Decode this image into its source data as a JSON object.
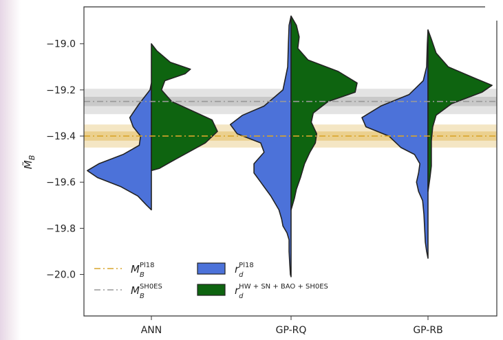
{
  "chart_data": {
    "type": "violin",
    "categories": [
      "ANN",
      "GP-RQ",
      "GP-RB"
    ],
    "ylabel": "M̃",
    "ylabel_sub": "B",
    "ylim": [
      -20.18,
      -18.84
    ],
    "yticks": [
      -19.0,
      -19.2,
      -19.4,
      -19.6,
      -19.8,
      -20.0
    ],
    "ytick_labels": [
      "−19.0",
      "−19.2",
      "−19.4",
      "−19.6",
      "−19.8",
      "−20.0"
    ],
    "grid": false,
    "legend_position": "bottom-left",
    "reference_lines": [
      {
        "key": "pl18",
        "label_main": "M",
        "label_sub": "B",
        "label_sup": "Pl18",
        "value": -19.4,
        "band1": 0.02,
        "band2": 0.05,
        "color": "#d9a52b"
      },
      {
        "key": "shoes",
        "label_main": "M",
        "label_sub": "B",
        "label_sup": "SH0ES",
        "value": -19.25,
        "band1": 0.02,
        "band2": 0.055,
        "color": "#999999"
      }
    ],
    "series": [
      {
        "key": "blue",
        "label_main": "r",
        "label_sub": "d",
        "label_sup": "Pl18",
        "color": "#4c72d9",
        "side": "left",
        "profiles": [
          [
            [
              -19.17,
              0
            ],
            [
              -19.2,
              0.02
            ],
            [
              -19.26,
              0.18
            ],
            [
              -19.32,
              0.32
            ],
            [
              -19.36,
              0.27
            ],
            [
              -19.4,
              0.16
            ],
            [
              -19.44,
              0.18
            ],
            [
              -19.48,
              0.42
            ],
            [
              -19.52,
              0.78
            ],
            [
              -19.55,
              0.95
            ],
            [
              -19.58,
              0.8
            ],
            [
              -19.62,
              0.45
            ],
            [
              -19.66,
              0.2
            ],
            [
              -19.7,
              0.07
            ],
            [
              -19.72,
              0
            ]
          ],
          [
            [
              -18.88,
              0
            ],
            [
              -18.92,
              0.03
            ],
            [
              -19.0,
              0.04
            ],
            [
              -19.1,
              0.05
            ],
            [
              -19.2,
              0.12
            ],
            [
              -19.27,
              0.4
            ],
            [
              -19.31,
              0.72
            ],
            [
              -19.35,
              0.9
            ],
            [
              -19.39,
              0.8
            ],
            [
              -19.43,
              0.45
            ],
            [
              -19.47,
              0.4
            ],
            [
              -19.52,
              0.55
            ],
            [
              -19.56,
              0.55
            ],
            [
              -19.6,
              0.45
            ],
            [
              -19.66,
              0.3
            ],
            [
              -19.72,
              0.18
            ],
            [
              -19.76,
              0.14
            ],
            [
              -19.79,
              0.12
            ],
            [
              -19.82,
              0.06
            ],
            [
              -19.85,
              0.03
            ],
            [
              -19.9,
              0.03
            ],
            [
              -19.95,
              0.02
            ],
            [
              -20.0,
              0.01
            ],
            [
              -20.01,
              0
            ]
          ],
          [
            [
              -18.94,
              0
            ],
            [
              -19.0,
              0.01
            ],
            [
              -19.1,
              0.02
            ],
            [
              -19.16,
              0.07
            ],
            [
              -19.22,
              0.28
            ],
            [
              -19.27,
              0.7
            ],
            [
              -19.32,
              0.98
            ],
            [
              -19.36,
              0.92
            ],
            [
              -19.4,
              0.58
            ],
            [
              -19.45,
              0.4
            ],
            [
              -19.48,
              0.2
            ],
            [
              -19.52,
              0.12
            ],
            [
              -19.56,
              0.14
            ],
            [
              -19.6,
              0.17
            ],
            [
              -19.64,
              0.14
            ],
            [
              -19.68,
              0.08
            ],
            [
              -19.74,
              0.06
            ],
            [
              -19.8,
              0.05
            ],
            [
              -19.86,
              0.04
            ],
            [
              -19.9,
              0.02
            ],
            [
              -19.93,
              0
            ]
          ]
        ]
      },
      {
        "key": "green",
        "label_main": "r",
        "label_sub": "d",
        "label_sup": "HW + SN + BAO + SH0ES",
        "color": "#0e6410",
        "side": "right",
        "profiles": [
          [
            [
              -19.0,
              0
            ],
            [
              -19.03,
              0.08
            ],
            [
              -19.08,
              0.28
            ],
            [
              -19.11,
              0.58
            ],
            [
              -19.13,
              0.5
            ],
            [
              -19.16,
              0.2
            ],
            [
              -19.2,
              0.15
            ],
            [
              -19.25,
              0.3
            ],
            [
              -19.29,
              0.6
            ],
            [
              -19.33,
              0.9
            ],
            [
              -19.38,
              0.98
            ],
            [
              -19.43,
              0.8
            ],
            [
              -19.47,
              0.55
            ],
            [
              -19.51,
              0.3
            ],
            [
              -19.54,
              0.12
            ],
            [
              -19.55,
              0
            ]
          ],
          [
            [
              -18.88,
              0
            ],
            [
              -18.92,
              0.08
            ],
            [
              -18.97,
              0.12
            ],
            [
              -19.02,
              0.1
            ],
            [
              -19.07,
              0.25
            ],
            [
              -19.12,
              0.7
            ],
            [
              -19.17,
              0.98
            ],
            [
              -19.21,
              0.95
            ],
            [
              -19.25,
              0.55
            ],
            [
              -19.3,
              0.33
            ],
            [
              -19.34,
              0.3
            ],
            [
              -19.39,
              0.38
            ],
            [
              -19.43,
              0.36
            ],
            [
              -19.47,
              0.28
            ],
            [
              -19.52,
              0.2
            ],
            [
              -19.58,
              0.14
            ],
            [
              -19.63,
              0.08
            ],
            [
              -19.67,
              0.05
            ],
            [
              -19.7,
              0.02
            ],
            [
              -19.72,
              0
            ]
          ],
          [
            [
              -18.94,
              0
            ],
            [
              -18.98,
              0.05
            ],
            [
              -19.04,
              0.12
            ],
            [
              -19.1,
              0.3
            ],
            [
              -19.15,
              0.7
            ],
            [
              -19.18,
              0.95
            ],
            [
              -19.21,
              0.8
            ],
            [
              -19.26,
              0.35
            ],
            [
              -19.31,
              0.12
            ],
            [
              -19.36,
              0.07
            ],
            [
              -19.42,
              0.05
            ],
            [
              -19.48,
              0.05
            ],
            [
              -19.53,
              0.05
            ],
            [
              -19.58,
              0.03
            ],
            [
              -19.62,
              0.01
            ],
            [
              -19.64,
              0
            ]
          ]
        ]
      }
    ]
  }
}
